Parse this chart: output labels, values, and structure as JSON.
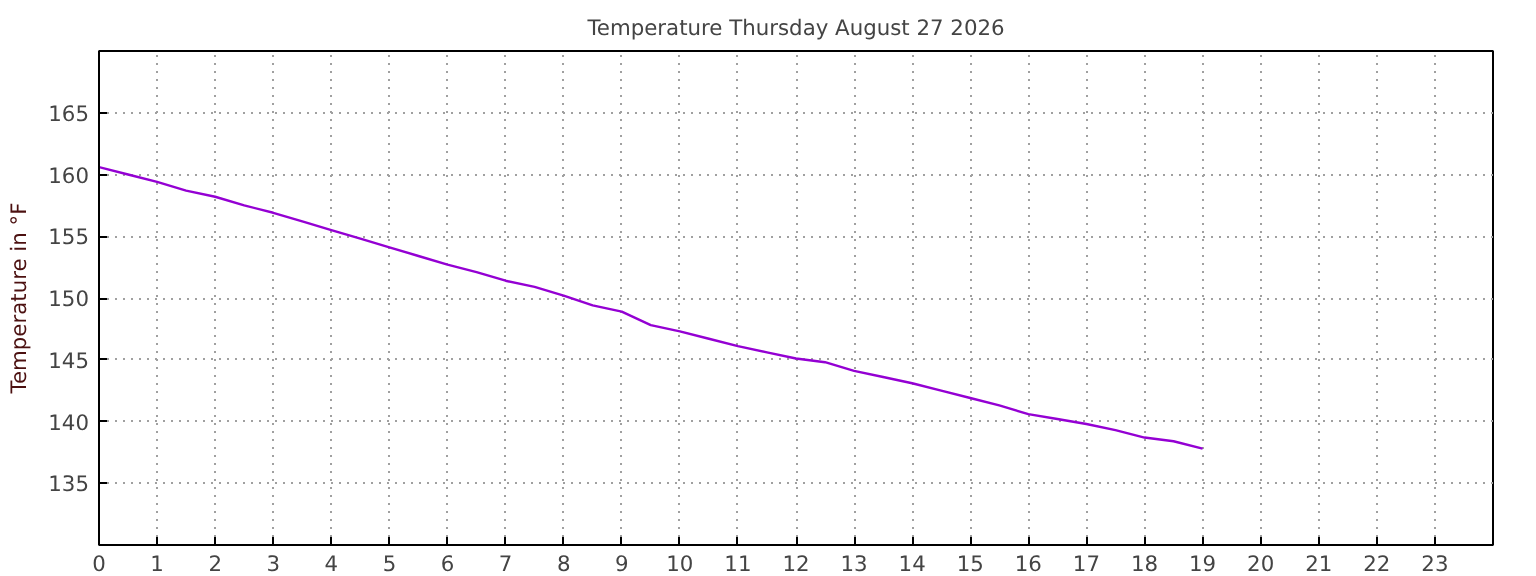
{
  "chart_data": {
    "type": "line",
    "title": "Temperature Thursday August 27 2026",
    "ylabel": "Temperature in °F",
    "x": [
      0,
      0.5,
      1,
      1.5,
      2,
      2.5,
      3,
      3.5,
      4,
      4.5,
      5,
      5.5,
      6,
      6.5,
      7,
      7.5,
      8,
      8.5,
      9,
      9.5,
      10,
      10.5,
      11,
      11.5,
      12,
      12.5,
      13,
      13.5,
      14,
      14.5,
      15,
      15.5,
      16,
      16.5,
      17,
      17.5,
      18,
      18.5,
      19
    ],
    "series": [
      {
        "color": "#9400d3",
        "values": [
          160.6,
          160.0,
          159.4,
          158.7,
          158.2,
          157.5,
          156.9,
          156.2,
          155.5,
          154.8,
          154.1,
          153.4,
          152.7,
          152.1,
          151.4,
          150.9,
          150.2,
          149.4,
          148.9,
          147.8,
          147.3,
          146.7,
          146.1,
          145.6,
          145.1,
          144.8,
          144.1,
          143.6,
          143.1,
          142.5,
          141.9,
          141.3,
          140.6,
          140.2,
          139.8,
          139.3,
          138.7,
          138.4,
          137.8
        ]
      }
    ],
    "xlim": [
      0,
      24
    ],
    "xticks": [
      0,
      1,
      2,
      3,
      4,
      5,
      6,
      7,
      8,
      9,
      10,
      11,
      12,
      13,
      14,
      15,
      16,
      17,
      18,
      19,
      20,
      21,
      22,
      23
    ],
    "ylim": [
      130,
      170
    ],
    "yticks": [
      135,
      140,
      145,
      150,
      155,
      160,
      165
    ],
    "grid": true,
    "marker": "none",
    "line_style": "solid"
  }
}
